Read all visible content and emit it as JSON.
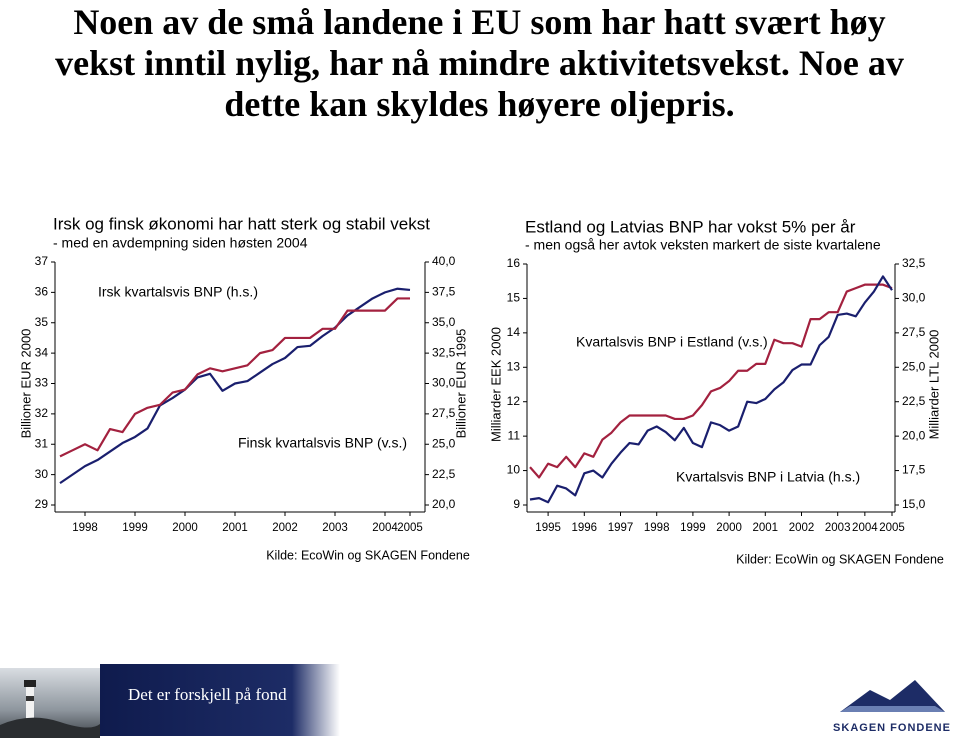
{
  "title": "Noen av de små landene i EU som har hatt svært høy vekst inntil nylig, har nå mindre aktivitetsvekst. Noe av dette kan skyldes høyere oljepris.",
  "chart_data": [
    {
      "type": "line",
      "title": "Irsk og finsk økonomi har hatt sterk og stabil vekst",
      "subtitle": "- med en avdempning siden høsten 2004",
      "ylabel": "Billioner EUR 2000",
      "y2label": "Billioner EUR 1995",
      "source": "Kilde: EcoWin og SKAGEN Fondene",
      "categories": [
        null,
        null,
        "1998",
        null,
        null,
        null,
        "1999",
        null,
        null,
        null,
        "2000",
        null,
        null,
        null,
        "2001",
        null,
        null,
        null,
        "2002",
        null,
        null,
        null,
        "2003",
        null,
        null,
        null,
        "2004",
        null,
        "2005"
      ],
      "series": [
        {
          "name": "Irsk kvartalsvis BNP (h.s.)",
          "color": "#1a1f6e",
          "axis": "y2",
          "values": [
            21.8,
            22.5,
            23.2,
            23.7,
            24.4,
            25.1,
            25.6,
            26.3,
            28.2,
            28.8,
            29.5,
            30.5,
            30.8,
            29.4,
            30.0,
            30.2,
            30.9,
            31.6,
            32.1,
            33.0,
            33.1,
            33.9,
            34.6,
            35.6,
            36.3,
            37.0,
            37.5,
            37.8,
            37.7
          ]
        },
        {
          "name": "Finsk kvartalsvis BNP (v.s.)",
          "color": "#a3213f",
          "axis": "y",
          "values": [
            30.6,
            30.8,
            31.0,
            30.8,
            31.5,
            31.4,
            32.0,
            32.2,
            32.3,
            32.7,
            32.8,
            33.3,
            33.5,
            33.4,
            33.5,
            33.6,
            34.0,
            34.1,
            34.5,
            34.5,
            34.5,
            34.8,
            34.8,
            35.4,
            35.4,
            35.4,
            35.4,
            35.8,
            35.8
          ]
        }
      ],
      "ylim": [
        29,
        37
      ],
      "yticks": [
        29,
        30,
        31,
        32,
        33,
        34,
        35,
        36,
        37
      ],
      "y2lim": [
        20,
        40
      ],
      "y2ticks": [
        {
          "value": 20,
          "label": "20,0"
        },
        {
          "value": 22.5,
          "label": "22,5"
        },
        {
          "value": 25,
          "label": "25,0"
        },
        {
          "value": 27.5,
          "label": "27,5"
        },
        {
          "value": 30,
          "label": "30,0"
        },
        {
          "value": 32.5,
          "label": "32,5"
        },
        {
          "value": 35,
          "label": "35,0"
        },
        {
          "value": 37.5,
          "label": "37,5"
        },
        {
          "value": 40,
          "label": "40,0"
        }
      ]
    },
    {
      "type": "line",
      "title": "Estland og Latvias BNP har vokst 5% per år",
      "subtitle": "- men også her avtok veksten markert de siste kvartalene",
      "ylabel": "Milliarder EEK 2000",
      "y2label": "Milliarder LTL 2000",
      "source": "Kilder: EcoWin og SKAGEN Fondene",
      "categories": [
        null,
        null,
        "1995",
        null,
        null,
        null,
        "1996",
        null,
        null,
        null,
        "1997",
        null,
        null,
        null,
        "1998",
        null,
        null,
        null,
        "1999",
        null,
        null,
        null,
        "2000",
        null,
        null,
        null,
        "2001",
        null,
        null,
        null,
        "2002",
        null,
        null,
        null,
        "2003",
        null,
        null,
        "2004",
        null,
        null,
        "2005"
      ],
      "series": [
        {
          "name": "Kvartalsvis BNP i Estland (v.s.)",
          "color": "#a3213f",
          "axis": "y",
          "values": [
            10.1,
            9.8,
            10.2,
            10.1,
            10.4,
            10.1,
            10.5,
            10.4,
            10.9,
            11.1,
            11.4,
            11.6,
            11.6,
            11.6,
            11.6,
            11.6,
            11.5,
            11.5,
            11.6,
            11.9,
            12.3,
            12.4,
            12.6,
            12.9,
            12.9,
            13.1,
            13.1,
            13.8,
            13.7,
            13.7,
            13.6,
            14.4,
            14.4,
            14.6,
            14.6,
            15.2,
            15.3,
            15.4,
            15.4,
            15.4,
            15.3
          ]
        },
        {
          "name": "Kvartalsvis BNP i Latvia (h.s.)",
          "color": "#1a1f6e",
          "axis": "y2",
          "values": [
            15.4,
            15.5,
            15.2,
            16.4,
            16.2,
            15.7,
            17.3,
            17.5,
            17.0,
            18.0,
            18.8,
            19.5,
            19.4,
            20.4,
            20.7,
            20.3,
            19.7,
            20.6,
            19.5,
            19.2,
            21.0,
            20.8,
            20.4,
            20.7,
            22.5,
            22.4,
            22.7,
            23.4,
            23.9,
            24.8,
            25.2,
            25.2,
            26.6,
            27.2,
            28.8,
            28.9,
            28.7,
            29.7,
            30.5,
            31.6,
            30.6
          ]
        }
      ],
      "ylim": [
        9,
        16
      ],
      "yticks": [
        9,
        10,
        11,
        12,
        13,
        14,
        15,
        16
      ],
      "y2lim": [
        15,
        32.5
      ],
      "y2ticks": [
        {
          "value": 15,
          "label": "15,0"
        },
        {
          "value": 17.5,
          "label": "17,5"
        },
        {
          "value": 20,
          "label": "20,0"
        },
        {
          "value": 22.5,
          "label": "22,5"
        },
        {
          "value": 25,
          "label": "25,0"
        },
        {
          "value": 27.5,
          "label": "27,5"
        },
        {
          "value": 30,
          "label": "30,0"
        },
        {
          "value": 32.5,
          "label": "32,5"
        }
      ]
    }
  ],
  "footer": {
    "tagline": "Det er forskjell på fond",
    "logo": "SKAGEN FONDENE"
  }
}
